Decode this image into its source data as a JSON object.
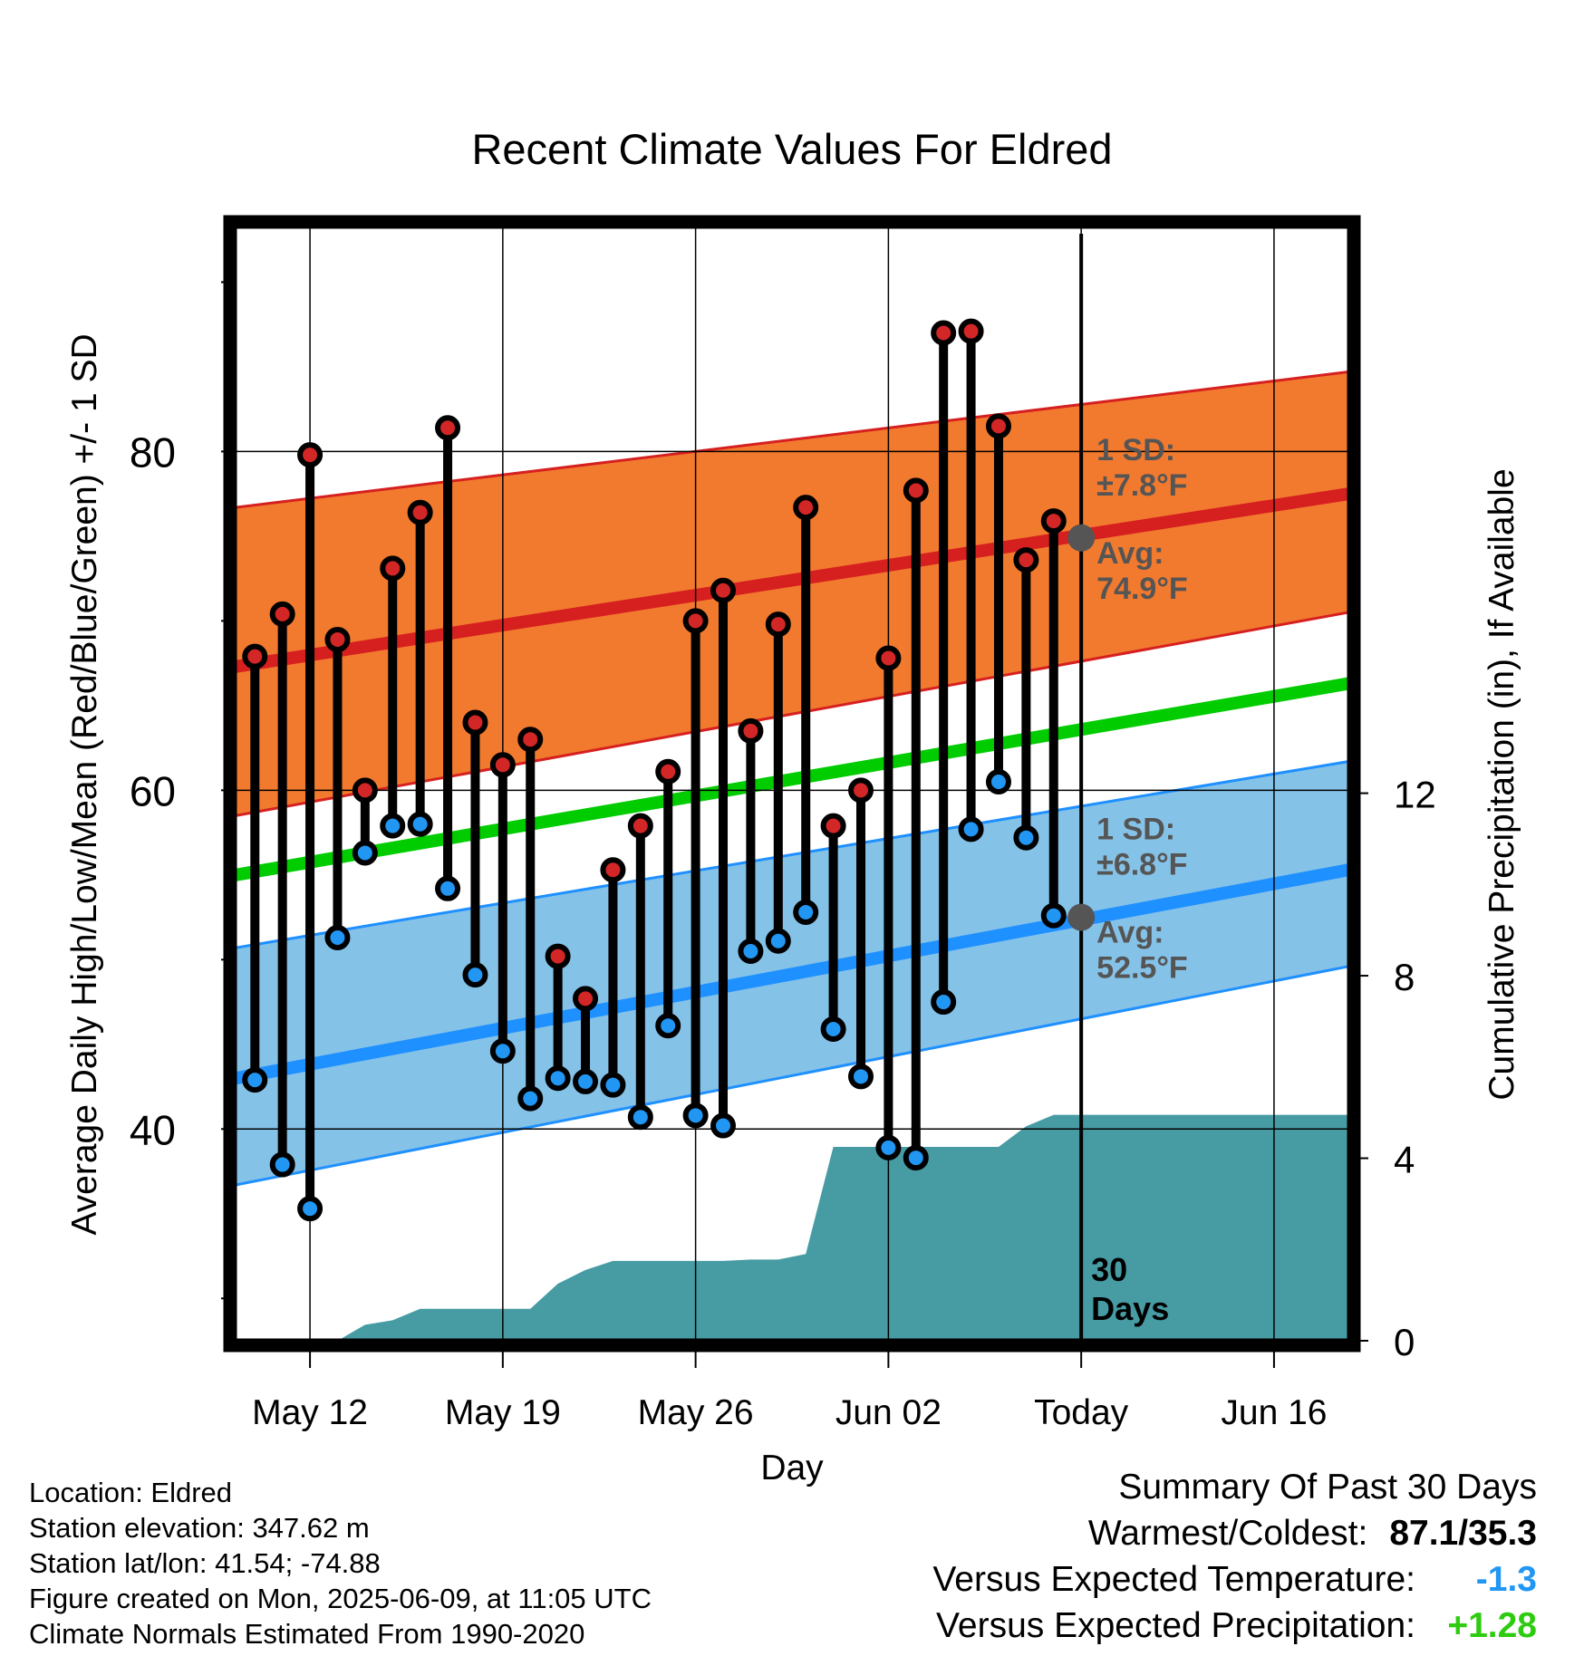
{
  "chart_data": {
    "type": "line",
    "title": "Recent Climate Values For Eldred",
    "xlabel": "Day",
    "ylabel_left": "Average Daily High/Low/Mean (Red/Blue/Green) +/- 1 SD",
    "ylabel_right": "Cumulative Precipitation (in), If Available",
    "x_ticks": [
      {
        "day": 12,
        "label": "May 12"
      },
      {
        "day": 19,
        "label": "May 19"
      },
      {
        "day": 26,
        "label": "May 26"
      },
      {
        "day": 33,
        "label": "Jun 02"
      },
      {
        "day": 40,
        "label": "Today"
      },
      {
        "day": 47,
        "label": "Jun 16"
      }
    ],
    "xlim": [
      9.3,
      49.7
    ],
    "ylim_left": [
      27.5,
      93.5
    ],
    "ylim_right": [
      0,
      24.5
    ],
    "y_ticks_left": [
      40,
      60,
      80
    ],
    "y_ticks_right": [
      0,
      4,
      8,
      12
    ],
    "grid": true,
    "today_day": 40,
    "days_label": "30\nDays",
    "normals": {
      "start_day": 9.3,
      "end_day": 49.7,
      "high_avg": [
        67.3,
        77.5
      ],
      "high_upper": [
        76.7,
        84.7
      ],
      "high_lower": [
        58.5,
        70.5
      ],
      "mean": [
        55.0,
        66.3
      ],
      "low_avg": [
        43.0,
        55.3
      ],
      "low_upper": [
        50.7,
        61.7
      ],
      "low_lower": [
        36.7,
        49.6
      ]
    },
    "high_annotation": {
      "sd_label": "1 SD:",
      "sd_value": "±7.8°F",
      "avg_label": "Avg:",
      "avg_value": "74.9°F",
      "avg": 74.9
    },
    "low_annotation": {
      "sd_label": "1 SD:",
      "sd_value": "±6.8°F",
      "avg_label": "Avg:",
      "avg_value": "52.5°F",
      "avg": 52.5
    },
    "series": [
      {
        "name": "High",
        "x": [
          10,
          11,
          12,
          13,
          14,
          15,
          16,
          17,
          18,
          19,
          20,
          21,
          22,
          23,
          24,
          25,
          26,
          27,
          28,
          29,
          30,
          31,
          32,
          33,
          34,
          35,
          36,
          37,
          38,
          39
        ],
        "values": [
          67.9,
          70.4,
          79.8,
          68.9,
          60.0,
          73.1,
          76.4,
          81.4,
          64.0,
          61.5,
          63.0,
          50.2,
          47.7,
          55.3,
          57.9,
          61.1,
          70.0,
          71.8,
          63.5,
          69.8,
          76.7,
          57.9,
          60.0,
          67.8,
          77.7,
          87.0,
          87.1,
          81.5,
          73.6,
          75.9
        ]
      },
      {
        "name": "Low",
        "x": [
          10,
          11,
          12,
          13,
          14,
          15,
          16,
          17,
          18,
          19,
          20,
          21,
          22,
          23,
          24,
          25,
          26,
          27,
          28,
          29,
          30,
          31,
          32,
          33,
          34,
          35,
          36,
          37,
          38,
          39
        ],
        "values": [
          42.9,
          37.9,
          35.3,
          51.3,
          56.3,
          57.9,
          58.0,
          54.2,
          49.1,
          44.6,
          41.8,
          43.0,
          42.8,
          42.6,
          40.7,
          46.1,
          40.8,
          40.2,
          50.5,
          51.1,
          52.8,
          45.9,
          43.1,
          38.9,
          38.3,
          47.5,
          57.7,
          60.5,
          57.2,
          52.6
        ]
      },
      {
        "name": "Cumulative Precipitation",
        "x": [
          10,
          11,
          12,
          13,
          14,
          15,
          16,
          17,
          18,
          19,
          20,
          21,
          22,
          23,
          24,
          25,
          26,
          27,
          28,
          29,
          30,
          31,
          32,
          33,
          34,
          35,
          36,
          37,
          38,
          39,
          40,
          49.7
        ],
        "values": [
          0,
          0,
          0,
          0,
          0.35,
          0.45,
          0.7,
          0.7,
          0.7,
          0.7,
          0.7,
          1.25,
          1.55,
          1.75,
          1.75,
          1.75,
          1.75,
          1.75,
          1.78,
          1.78,
          1.9,
          4.25,
          4.25,
          4.25,
          4.25,
          4.25,
          4.25,
          4.25,
          4.7,
          4.95,
          4.95,
          4.95
        ]
      }
    ]
  },
  "footer": {
    "location": "Location: Eldred",
    "elevation": "Station elevation: 347.62 m",
    "latlon": "Station lat/lon: 41.54; -74.88",
    "created": "Figure created on Mon, 2025-06-09, at 11:05 UTC",
    "normals_note": "Climate Normals Estimated From 1990-2020"
  },
  "summary": {
    "title": "Summary Of Past 30 Days",
    "warmest_label": "Warmest/Coldest:",
    "warmest_value": "87.1/35.3",
    "temp_label": "Versus Expected Temperature:",
    "temp_value": "-1.3",
    "temp_color": "#2196f3",
    "precip_label": "Versus Expected Precipitation:",
    "precip_value": "+1.28",
    "precip_color": "#2ecc10"
  },
  "colors": {
    "high_band": "#f27a2e",
    "high_line": "#d62020",
    "mean_line": "#00cc00",
    "low_band": "#85c2e8",
    "low_line": "#1e90ff",
    "precip_fill": "#479ca4",
    "high_dot": "#d32626",
    "low_dot": "#2196f3",
    "annotation_text": "#555555"
  }
}
